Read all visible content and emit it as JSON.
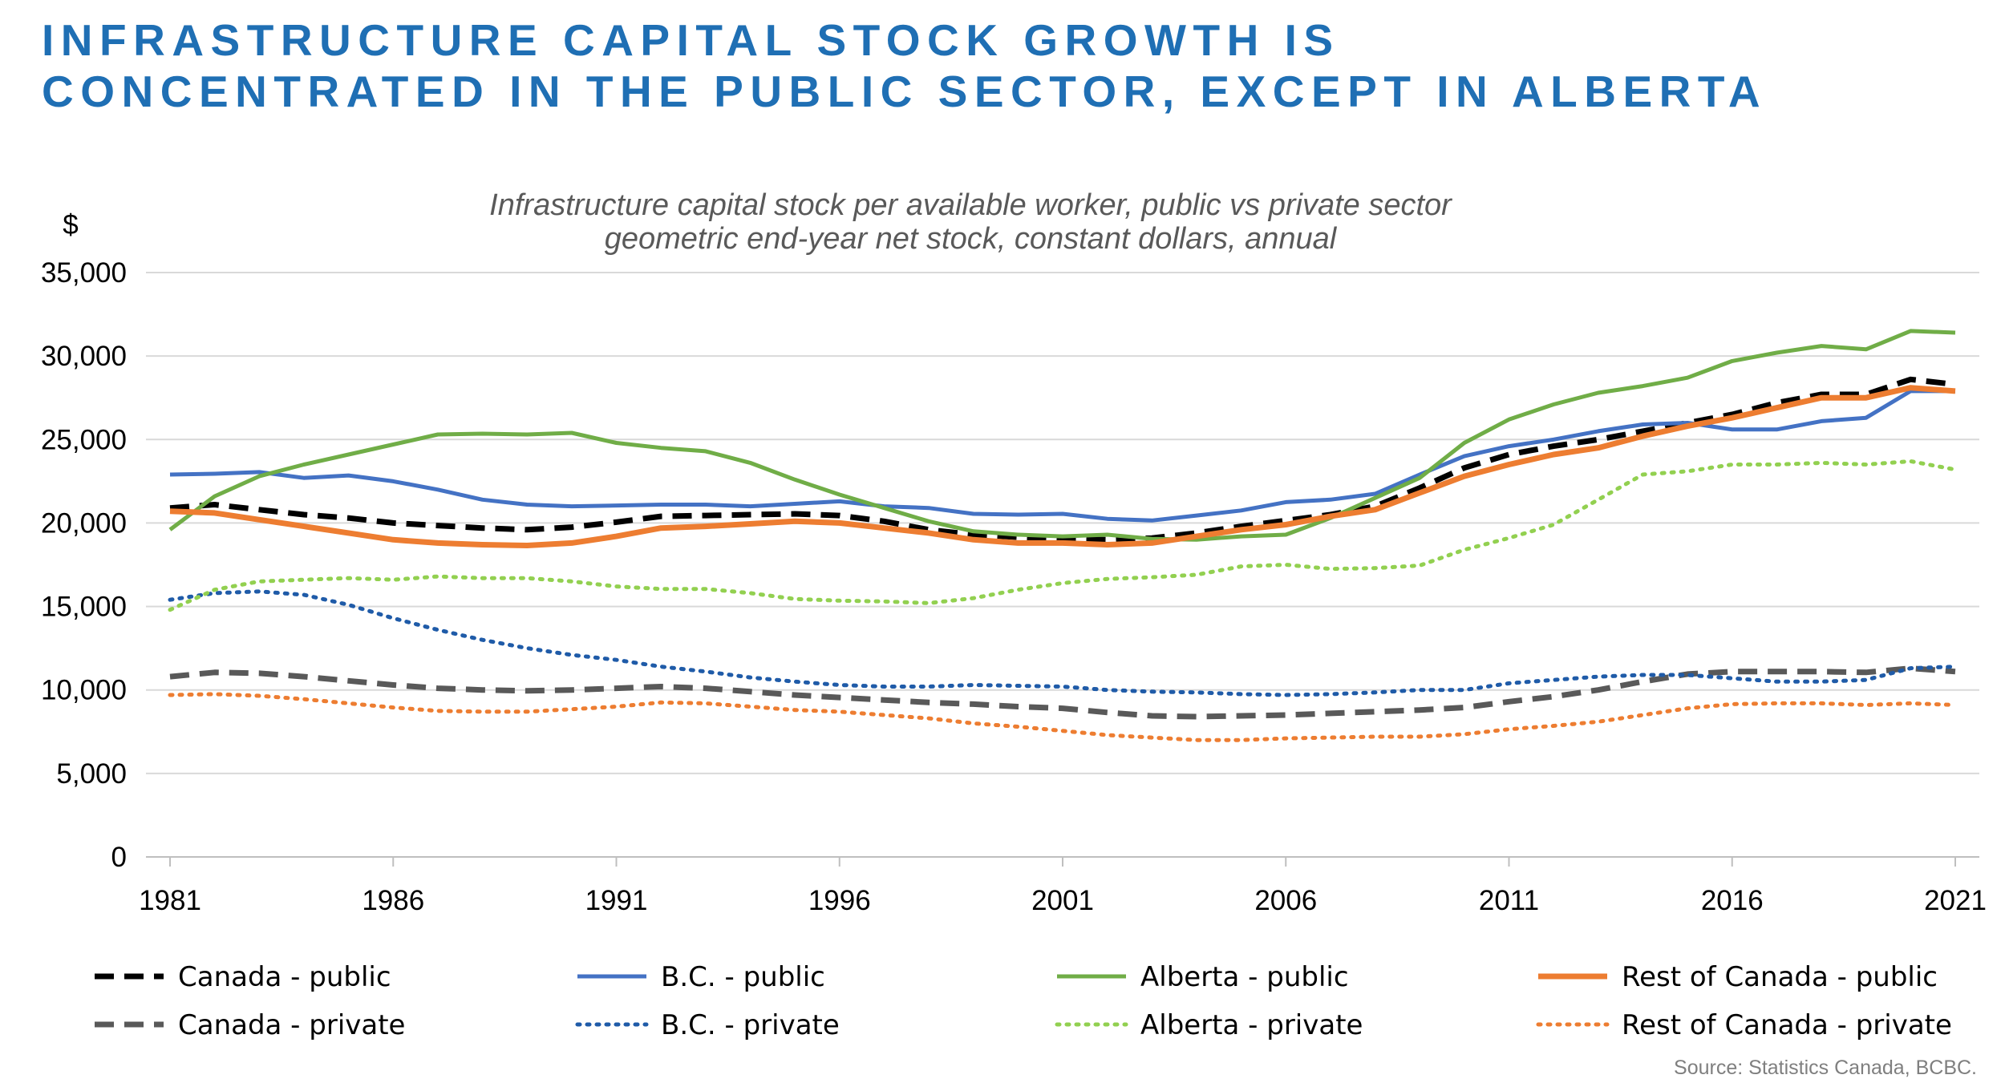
{
  "headline": {
    "line1": "INFRASTRUCTURE CAPITAL STOCK GROWTH IS",
    "line2": "CONCENTRATED IN THE PUBLIC SECTOR, EXCEPT IN ALBERTA"
  },
  "source": "Source: Statistics Canada, BCBC.",
  "chart_data": {
    "type": "line",
    "title": "Infrastructure capital stock per available worker, public vs private sector",
    "subtitle": "geometric end-year net stock, constant dollars, annual",
    "ylabel": "$",
    "xlabel": "",
    "ylim": [
      0,
      35000
    ],
    "yticks": [
      0,
      5000,
      10000,
      15000,
      20000,
      25000,
      30000,
      35000
    ],
    "ytick_labels": [
      "0",
      "5,000",
      "10,000",
      "15,000",
      "20,000",
      "25,000",
      "30,000",
      "35,000"
    ],
    "xlim": [
      1981,
      2021
    ],
    "xticks": [
      1981,
      1986,
      1991,
      1996,
      2001,
      2006,
      2011,
      2016,
      2021
    ],
    "xtick_labels": [
      "1981",
      "1986",
      "1991",
      "1996",
      "2001",
      "2006",
      "2011",
      "2016",
      "2021"
    ],
    "grid": "horizontal",
    "legend_position": "bottom",
    "x": [
      1981,
      1982,
      1983,
      1984,
      1985,
      1986,
      1987,
      1988,
      1989,
      1990,
      1991,
      1992,
      1993,
      1994,
      1995,
      1996,
      1997,
      1998,
      1999,
      2000,
      2001,
      2002,
      2003,
      2004,
      2005,
      2006,
      2007,
      2008,
      2009,
      2010,
      2011,
      2012,
      2013,
      2014,
      2015,
      2016,
      2017,
      2018,
      2019,
      2020,
      2021
    ],
    "series": [
      {
        "name": "Canada - public",
        "color": "#000000",
        "dash": "dashed",
        "width": 7,
        "values": [
          20900,
          21100,
          20800,
          20500,
          20300,
          20000,
          19850,
          19700,
          19600,
          19750,
          20050,
          20400,
          20450,
          20500,
          20550,
          20450,
          20100,
          19600,
          19300,
          19150,
          19050,
          19000,
          19100,
          19400,
          19800,
          20150,
          20500,
          21000,
          22100,
          23300,
          24100,
          24600,
          25000,
          25500,
          26000,
          26500,
          27200,
          27700,
          27700,
          28600,
          28300
        ]
      },
      {
        "name": "B.C. - public",
        "color": "#4472c4",
        "dash": "solid",
        "width": 5,
        "values": [
          22900,
          22950,
          23050,
          22700,
          22850,
          22500,
          22000,
          21400,
          21100,
          21000,
          21050,
          21100,
          21100,
          21000,
          21150,
          21300,
          21000,
          20900,
          20550,
          20500,
          20550,
          20250,
          20150,
          20450,
          20750,
          21250,
          21400,
          21750,
          22900,
          24000,
          24600,
          25000,
          25500,
          25900,
          26000,
          25600,
          25600,
          26100,
          26300,
          27900,
          27900
        ]
      },
      {
        "name": "Alberta - public",
        "color": "#70ad47",
        "dash": "solid",
        "width": 5,
        "values": [
          19600,
          21600,
          22800,
          23500,
          24100,
          24700,
          25300,
          25350,
          25300,
          25400,
          24800,
          24500,
          24300,
          23600,
          22600,
          21700,
          20900,
          20100,
          19500,
          19300,
          19200,
          19300,
          19050,
          19000,
          19200,
          19300,
          20300,
          21500,
          22700,
          24800,
          26200,
          27100,
          27800,
          28200,
          28700,
          29700,
          30200,
          30600,
          30400,
          31500,
          31400
        ]
      },
      {
        "name": "Rest of Canada - public",
        "color": "#ed7d31",
        "dash": "solid",
        "width": 7,
        "values": [
          20700,
          20600,
          20200,
          19800,
          19400,
          19000,
          18800,
          18700,
          18650,
          18800,
          19200,
          19700,
          19800,
          19950,
          20100,
          20000,
          19700,
          19400,
          19000,
          18800,
          18800,
          18700,
          18800,
          19200,
          19600,
          19900,
          20400,
          20800,
          21800,
          22800,
          23500,
          24100,
          24500,
          25200,
          25800,
          26300,
          26900,
          27500,
          27500,
          28100,
          27900
        ]
      },
      {
        "name": "Canada - private",
        "color": "#595959",
        "dash": "dashed",
        "width": 7,
        "values": [
          10800,
          11050,
          11000,
          10800,
          10550,
          10300,
          10100,
          10000,
          9950,
          10000,
          10100,
          10200,
          10100,
          9900,
          9700,
          9550,
          9400,
          9250,
          9150,
          9000,
          8900,
          8650,
          8450,
          8400,
          8450,
          8500,
          8600,
          8700,
          8800,
          8950,
          9300,
          9600,
          10000,
          10500,
          10950,
          11100,
          11100,
          11100,
          11050,
          11300,
          11100
        ]
      },
      {
        "name": "B.C. - private",
        "color": "#1f5ba8",
        "dash": "dotted",
        "width": 5,
        "values": [
          15400,
          15800,
          15900,
          15700,
          15100,
          14300,
          13600,
          13000,
          12500,
          12100,
          11800,
          11400,
          11100,
          10750,
          10500,
          10300,
          10200,
          10200,
          10300,
          10250,
          10200,
          10000,
          9900,
          9850,
          9750,
          9700,
          9750,
          9850,
          10000,
          10000,
          10400,
          10600,
          10800,
          10900,
          10900,
          10700,
          10500,
          10500,
          10600,
          11300,
          11400
        ]
      },
      {
        "name": "Alberta - private",
        "color": "#92d050",
        "dash": "dotted",
        "width": 5,
        "values": [
          14800,
          16000,
          16500,
          16600,
          16700,
          16600,
          16800,
          16700,
          16700,
          16500,
          16200,
          16050,
          16050,
          15800,
          15450,
          15350,
          15300,
          15200,
          15500,
          16000,
          16400,
          16650,
          16750,
          16900,
          17400,
          17500,
          17250,
          17300,
          17450,
          18400,
          19100,
          19900,
          21400,
          22900,
          23100,
          23500,
          23500,
          23600,
          23500,
          23700,
          23200
        ]
      },
      {
        "name": "Rest of Canada - private",
        "color": "#ed7d31",
        "dash": "dotted",
        "width": 5,
        "values": [
          9700,
          9750,
          9650,
          9450,
          9200,
          8950,
          8750,
          8700,
          8700,
          8850,
          9000,
          9250,
          9200,
          9000,
          8800,
          8700,
          8500,
          8300,
          8000,
          7800,
          7550,
          7300,
          7150,
          7000,
          7000,
          7100,
          7150,
          7200,
          7200,
          7350,
          7650,
          7850,
          8100,
          8500,
          8900,
          9150,
          9200,
          9200,
          9100,
          9200,
          9100
        ]
      }
    ]
  }
}
